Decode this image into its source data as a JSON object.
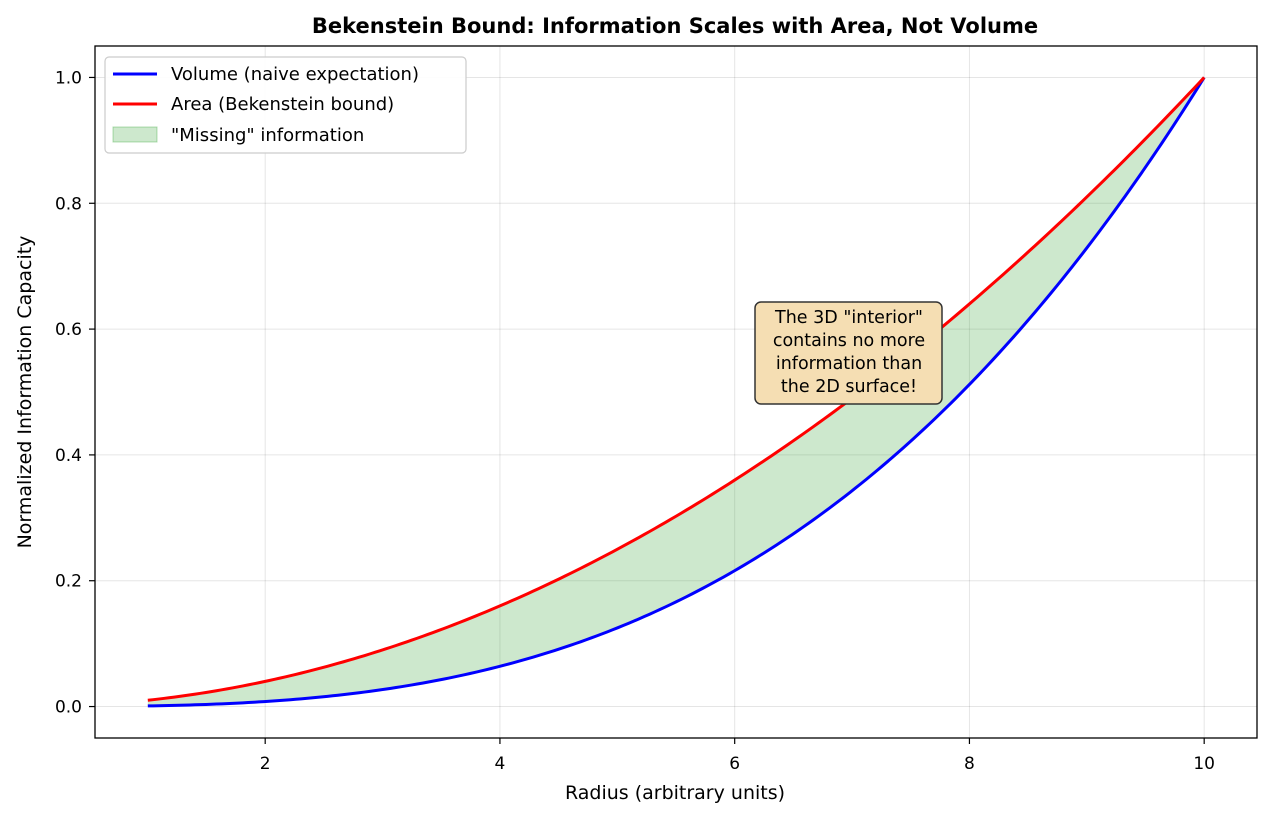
{
  "chart_data": {
    "type": "line",
    "title": "Bekenstein Bound: Information Scales with Area, Not Volume",
    "xlabel": "Radius (arbitrary units)",
    "ylabel": "Normalized Information Capacity",
    "xlim": [
      0.55,
      10.45
    ],
    "ylim": [
      -0.05,
      1.05
    ],
    "x_ticks": [
      2,
      4,
      6,
      8,
      10
    ],
    "y_ticks": [
      0.0,
      0.2,
      0.4,
      0.6,
      0.8,
      1.0
    ],
    "x_tick_labels": [
      "2",
      "4",
      "6",
      "8",
      "10"
    ],
    "y_tick_labels": [
      "0.0",
      "0.2",
      "0.4",
      "0.6",
      "0.8",
      "1.0"
    ],
    "grid": true,
    "legend_position": "top-left",
    "x": [
      1,
      1.5,
      2,
      2.5,
      3,
      3.5,
      4,
      4.5,
      5,
      5.5,
      6,
      6.5,
      7,
      7.5,
      8,
      8.5,
      9,
      9.5,
      10
    ],
    "series": [
      {
        "name": "Volume (naive expectation)",
        "color": "#0000ff",
        "values": [
          0.001,
          0.003375,
          0.008,
          0.015625,
          0.027,
          0.042875,
          0.064,
          0.091125,
          0.125,
          0.166375,
          0.216,
          0.274625,
          0.343,
          0.421875,
          0.512,
          0.614125,
          0.729,
          0.857375,
          1.0
        ]
      },
      {
        "name": "Area (Bekenstein bound)",
        "color": "#ff0000",
        "values": [
          0.01,
          0.0225,
          0.04,
          0.0625,
          0.09,
          0.1225,
          0.16,
          0.2025,
          0.25,
          0.3025,
          0.36,
          0.4225,
          0.49,
          0.5625,
          0.64,
          0.7225,
          0.81,
          0.9025,
          1.0
        ]
      }
    ],
    "fill_between": {
      "name": "\"Missing\" information",
      "color": "#2ca02c",
      "opacity": 0.24
    },
    "annotation": {
      "lines": [
        "The 3D \"interior\"",
        "contains no more",
        "information than",
        "the 2D surface!"
      ],
      "x": 6.95,
      "y": 0.57,
      "background": "#f5deb3"
    }
  }
}
